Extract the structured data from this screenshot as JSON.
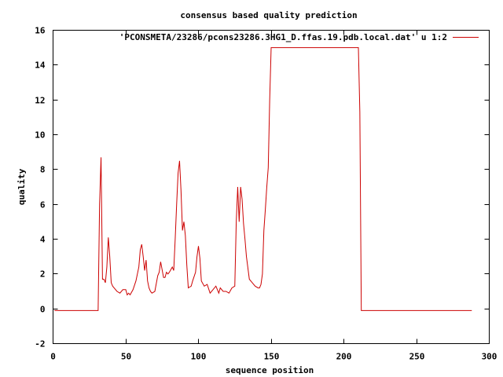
{
  "chart_data": {
    "type": "line",
    "title": "consensus based quality prediction",
    "xlabel": "sequence position",
    "ylabel": "quality",
    "xlim": [
      0,
      300
    ],
    "ylim": [
      -2,
      16
    ],
    "xticks": [
      0,
      50,
      100,
      150,
      200,
      250,
      300
    ],
    "yticks": [
      -2,
      0,
      2,
      4,
      6,
      8,
      10,
      12,
      14,
      16
    ],
    "grid": false,
    "legend_position": "top-right",
    "series": [
      {
        "name": "'PCONSMETA/23286/pcons23286.3HG1_D.ffas.19.pdb.local.dat' u 1:2",
        "color": "#cc0000",
        "x": [
          1,
          31,
          32,
          33,
          34,
          35,
          36,
          37,
          38,
          39,
          40,
          41,
          42,
          44,
          46,
          48,
          50,
          51,
          52,
          53,
          55,
          57,
          59,
          60,
          61,
          62,
          63,
          64,
          65,
          66,
          67,
          68,
          70,
          72,
          73,
          74,
          76,
          77,
          78,
          79,
          80,
          82,
          83,
          84,
          85,
          86,
          87,
          88,
          89,
          90,
          91,
          92,
          93,
          95,
          96,
          98,
          99,
          100,
          101,
          102,
          104,
          106,
          108,
          110,
          112,
          114,
          115,
          117,
          119,
          121,
          123,
          125,
          126,
          127,
          128,
          129,
          130,
          131,
          132,
          133,
          135,
          137,
          139,
          141,
          142,
          143,
          144,
          145,
          146,
          147,
          148,
          149,
          150,
          210,
          211,
          212,
          288
        ],
        "y": [
          -0.1,
          -0.1,
          6.0,
          8.7,
          1.7,
          1.7,
          1.5,
          2.4,
          4.1,
          3.0,
          1.5,
          1.3,
          1.2,
          1.0,
          0.9,
          1.1,
          1.1,
          0.8,
          0.9,
          0.8,
          1.1,
          1.6,
          2.4,
          3.4,
          3.7,
          3.0,
          2.2,
          2.8,
          1.6,
          1.2,
          1.0,
          0.9,
          1.0,
          1.9,
          2.1,
          2.7,
          1.8,
          1.8,
          2.1,
          2.0,
          2.1,
          2.4,
          2.2,
          4.0,
          6.0,
          7.8,
          8.5,
          6.8,
          4.5,
          5.0,
          4.2,
          2.5,
          1.2,
          1.3,
          1.6,
          2.1,
          3.0,
          3.6,
          2.9,
          1.6,
          1.3,
          1.4,
          0.9,
          1.1,
          1.3,
          0.9,
          1.2,
          1.0,
          1.0,
          0.9,
          1.2,
          1.3,
          5.0,
          7.0,
          5.0,
          7.0,
          6.3,
          4.9,
          4.0,
          3.0,
          1.7,
          1.5,
          1.3,
          1.2,
          1.2,
          1.4,
          2.0,
          4.5,
          5.7,
          7.0,
          8.1,
          12.0,
          15.0,
          15.0,
          11.3,
          -0.1,
          -0.1
        ]
      }
    ]
  }
}
